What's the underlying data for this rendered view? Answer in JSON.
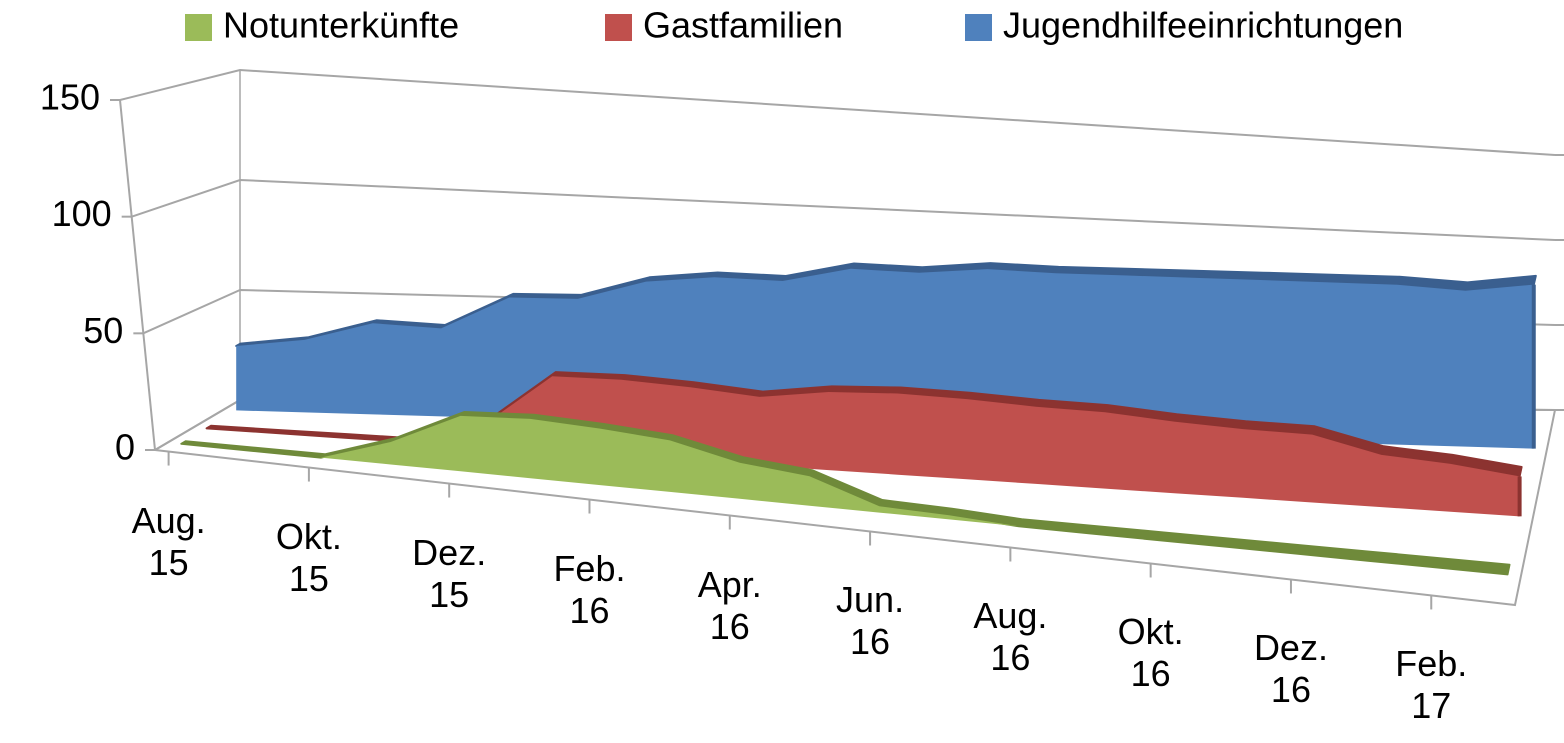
{
  "chart_data": {
    "type": "area3d",
    "categories": [
      "Aug. 15",
      null,
      "Okt. 15",
      null,
      "Dez. 15",
      null,
      "Feb. 16",
      null,
      "Apr. 16",
      null,
      "Jun. 16",
      null,
      "Aug. 16",
      null,
      "Okt. 16",
      null,
      "Dez. 16",
      null,
      "Feb. 17",
      null
    ],
    "series": [
      {
        "name": "Notunterkünfte",
        "color": "#9bbb59",
        "edge": "#6f8a3a",
        "values": [
          0,
          0,
          0,
          10,
          25,
          27,
          26,
          24,
          17,
          14,
          3,
          2,
          0,
          0,
          0,
          0,
          0,
          0,
          0,
          0
        ]
      },
      {
        "name": "Gastfamilien",
        "color": "#c0504d",
        "edge": "#8c3330",
        "values": [
          0,
          0,
          0,
          0,
          10,
          35,
          36,
          35,
          33,
          38,
          40,
          40,
          39,
          39,
          37,
          36,
          36,
          28,
          26,
          22
        ]
      },
      {
        "name": "Jugendhilfeeinrichtungen",
        "color": "#4f81bd",
        "edge": "#3a5f8f",
        "values": [
          29,
          33,
          42,
          41,
          57,
          58,
          68,
          72,
          72,
          80,
          80,
          84,
          84,
          85,
          86,
          87,
          88,
          89,
          88,
          94
        ]
      }
    ],
    "ylim": [
      0,
      150
    ],
    "yticks": [
      0,
      50,
      100,
      150
    ],
    "grid": true,
    "legend": "top"
  }
}
